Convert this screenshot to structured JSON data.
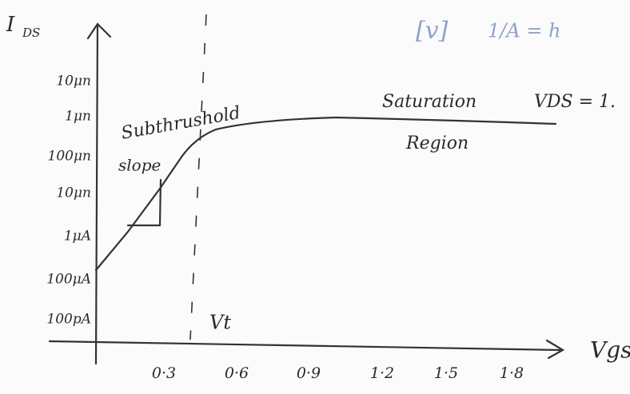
{
  "header": {
    "y_label": "I",
    "y_label_sub": "DS",
    "top_marks": [
      "[v]",
      "1/A = h"
    ]
  },
  "y_axis_labels": [
    "10μn",
    "1μn",
    "100μn",
    "10μn",
    "1μA",
    "100μA",
    "100pA"
  ],
  "x_axis_labels": [
    "0·3",
    "0·6",
    "0·9",
    "1·2",
    "1·5",
    "1·8"
  ],
  "x_label": "Vgs",
  "annotations": {
    "slope_1": "Subthrushold",
    "slope_2": "slope",
    "sat_1": "Saturation",
    "sat_2": "Region",
    "vds": "VDS = 1.",
    "vt": "Vt"
  }
}
